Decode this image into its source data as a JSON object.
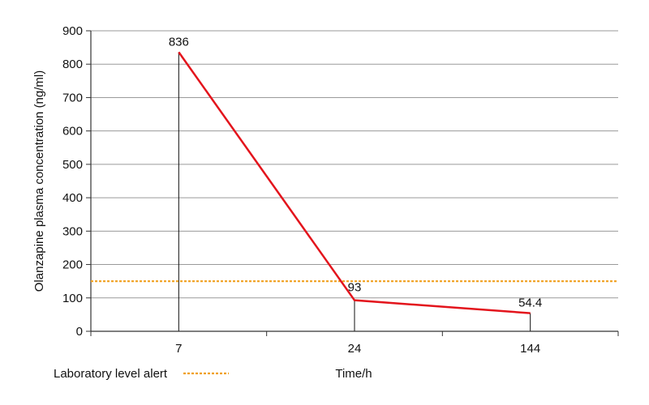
{
  "chart_data": {
    "type": "line",
    "categories": [
      "7",
      "24",
      "144"
    ],
    "series": [
      {
        "values": [
          836,
          93,
          54.4
        ],
        "color": "#e3141c"
      }
    ],
    "data_labels": [
      "836",
      "93",
      "54.4"
    ],
    "ylabel": "Olanzapine plasma concentration (ng/ml)",
    "xlabel": "Time/h",
    "ylim": [
      0,
      900
    ],
    "yticks": [
      0,
      100,
      200,
      300,
      400,
      500,
      600,
      700,
      800,
      900
    ],
    "grid": true,
    "reference_line": {
      "label": "Laboratory level alert",
      "value": 150,
      "color": "#f0a020"
    },
    "legend_position": "bottom-left"
  }
}
